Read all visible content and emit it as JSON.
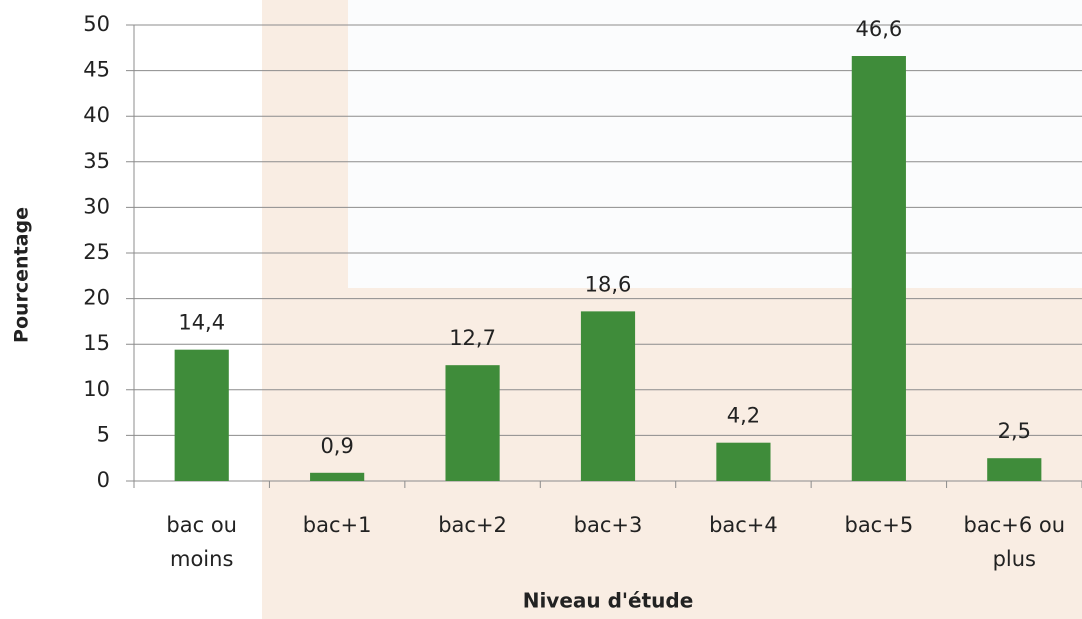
{
  "chart_data": {
    "type": "bar",
    "x_label": "Niveau d'étude",
    "y_label": "Pourcentage",
    "categories": [
      "bac ou moins",
      "bac+1",
      "bac+2",
      "bac+3",
      "bac+4",
      "bac+5",
      "bac+6 ou plus"
    ],
    "values": [
      14.4,
      0.9,
      12.7,
      18.6,
      4.2,
      46.6,
      2.5
    ],
    "value_labels": [
      "14,4",
      "0,9",
      "12,7",
      "18,6",
      "4,2",
      "46,6",
      "2,5"
    ],
    "color": "#3f8c3a",
    "ylim": [
      0,
      50
    ],
    "yticks": [
      0,
      5,
      10,
      15,
      20,
      25,
      30,
      35,
      40,
      45,
      50
    ],
    "grid": true
  }
}
